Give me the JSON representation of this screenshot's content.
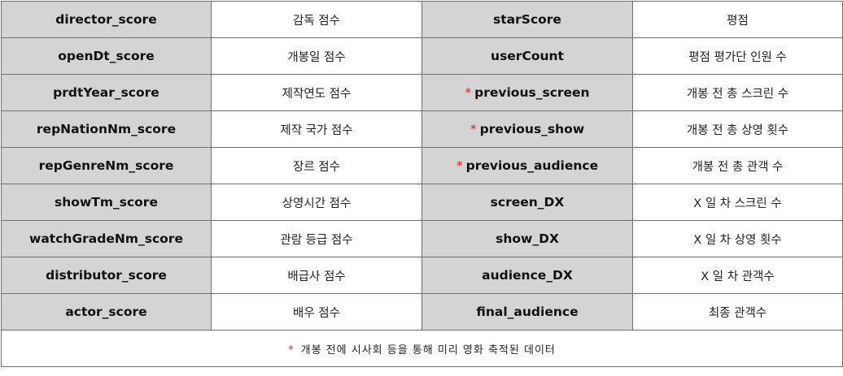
{
  "marker": "*",
  "rows": [
    {
      "left_key": "director_score",
      "left_desc": "감독 점수",
      "right_key": "starScore",
      "right_desc": "평점"
    },
    {
      "left_key": "openDt_score",
      "left_desc": "개봉일 점수",
      "right_key": "userCount",
      "right_desc": "평점 평가단 인원 수"
    },
    {
      "left_key": "prdtYear_score",
      "left_desc": "제작연도 점수",
      "right_key": "previous_screen",
      "right_desc": "개봉 전 총 스크린 수"
    },
    {
      "left_key": "repNationNm_score",
      "left_desc": "제작 국가 점수",
      "right_key": "previous_show",
      "right_desc": "개봉 전 총 상영 횟수"
    },
    {
      "left_key": "repGenreNm_score",
      "left_desc": "장르 점수",
      "right_key": "previous_audience",
      "right_desc": "개봉 전 총 관객 수"
    },
    {
      "left_key": "showTm_score",
      "left_desc": "상영시간 점수",
      "right_key": "screen_DX",
      "right_desc": "X 일 차 스크린 수"
    },
    {
      "left_key": "watchGradeNm_score",
      "left_desc": "관람 등급 점수",
      "right_key": "show_DX",
      "right_desc": "X 일 차 상영 횟수"
    },
    {
      "left_key": "distributor_score",
      "left_desc": "배급사 점수",
      "right_key": "audience_DX",
      "right_desc": "X 일 차 관객수"
    },
    {
      "left_key": "actor_score",
      "left_desc": "배우 점수",
      "right_key": "final_audience",
      "right_desc": "최종 관객수"
    }
  ],
  "footnote": "개봉 전에 시사회 등을 통해 미리 영화 축적된 데이터"
}
